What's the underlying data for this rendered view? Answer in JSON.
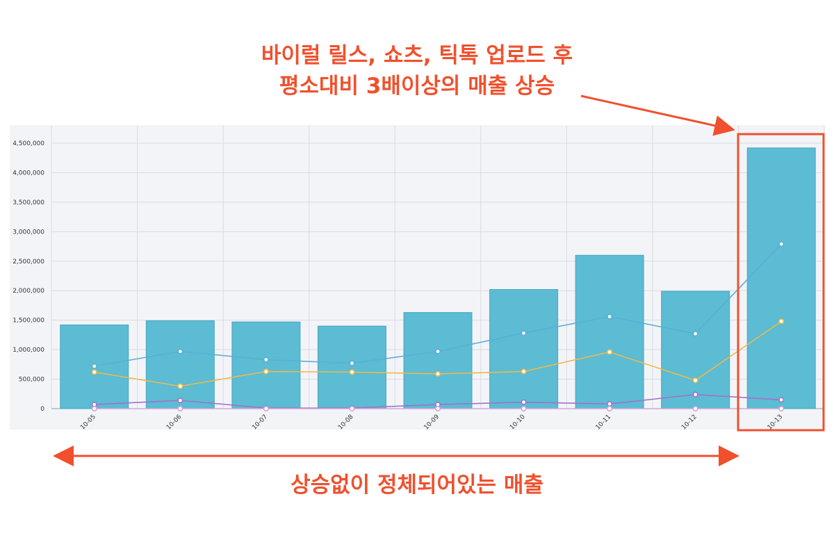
{
  "annotations": {
    "headline_line1": "바이럴 릴스, 쇼츠, 틱톡 업로드 후",
    "headline_line2": "평소대비 3배이상의 매출 상승",
    "bottom_caption": "상승없이 정체되어있는 매출",
    "accent_color": "#f0502d"
  },
  "chart_data": {
    "type": "bar",
    "categories": [
      "10-05",
      "10-06",
      "10-07",
      "10-08",
      "10-09",
      "10-10",
      "10-11",
      "10-12",
      "10-13"
    ],
    "values": [
      1420000,
      1490000,
      1470000,
      1400000,
      1630000,
      2020000,
      2600000,
      1990000,
      4420000
    ],
    "bar_color": "#5bbcd3",
    "series": [
      {
        "type": "line",
        "color": "#5aafd6",
        "values": [
          720000,
          970000,
          830000,
          770000,
          970000,
          1280000,
          1560000,
          1270000,
          2790000
        ]
      },
      {
        "type": "line",
        "color": "#f0b84a",
        "values": [
          620000,
          380000,
          630000,
          620000,
          590000,
          630000,
          960000,
          480000,
          1480000
        ]
      },
      {
        "type": "line",
        "color": "#a371c9",
        "values": [
          70000,
          140000,
          10000,
          10000,
          70000,
          110000,
          80000,
          240000,
          150000
        ]
      },
      {
        "type": "line",
        "color": "#d2a6d8",
        "values": [
          0,
          0,
          0,
          0,
          0,
          0,
          0,
          0,
          0
        ]
      }
    ],
    "yticks": [
      "0",
      "500,000",
      "1,000,000",
      "1,500,000",
      "2,000,000",
      "2,500,000",
      "3,000,000",
      "3,500,000",
      "4,000,000",
      "4,500,000"
    ],
    "ylim": [
      0,
      4700000
    ],
    "grid": true,
    "highlight_category": "10-13",
    "title": "",
    "xlabel": "",
    "ylabel": ""
  }
}
